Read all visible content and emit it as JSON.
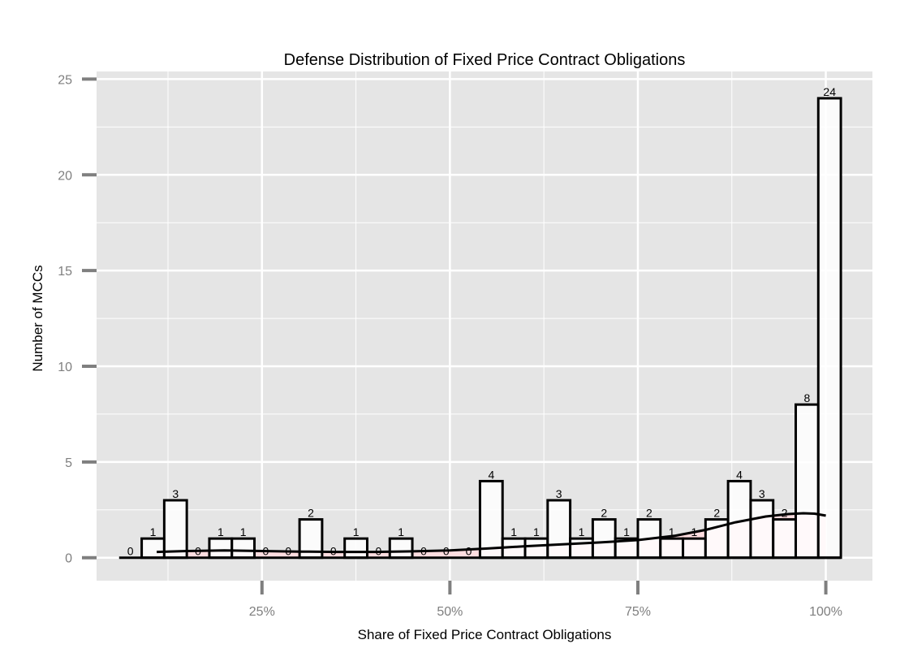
{
  "chart_data": {
    "type": "bar",
    "title": "Defense Distribution of Fixed Price Contract Obligations",
    "xlabel": "Share of Fixed Price Contract Obligations",
    "ylabel": "Number of MCCs",
    "xlim": [
      0.03,
      1.062
    ],
    "ylim": [
      -1.2,
      25.4
    ],
    "x_ticks": [
      0.25,
      0.5,
      0.75,
      1.0
    ],
    "x_tick_labels": [
      "25%",
      "50%",
      "75%",
      "100%"
    ],
    "y_ticks": [
      0,
      5,
      10,
      15,
      20,
      25
    ],
    "y_tick_labels": [
      "0",
      "5",
      "10",
      "15",
      "20",
      "25"
    ],
    "bin_width": 0.03,
    "bin_centers": [
      0.075,
      0.105,
      0.135,
      0.165,
      0.195,
      0.225,
      0.255,
      0.285,
      0.315,
      0.345,
      0.375,
      0.405,
      0.435,
      0.465,
      0.495,
      0.525,
      0.555,
      0.585,
      0.615,
      0.645,
      0.675,
      0.705,
      0.735,
      0.765,
      0.795,
      0.825,
      0.855,
      0.885,
      0.915,
      0.945,
      0.975,
      1.005
    ],
    "values": [
      0,
      1,
      3,
      0,
      1,
      1,
      0,
      0,
      2,
      0,
      1,
      0,
      1,
      0,
      0,
      0,
      4,
      1,
      1,
      3,
      1,
      2,
      1,
      2,
      1,
      1,
      2,
      4,
      3,
      2,
      8,
      24
    ],
    "density": {
      "x": [
        0.11,
        0.15,
        0.2,
        0.25,
        0.3,
        0.35,
        0.4,
        0.45,
        0.5,
        0.55,
        0.6,
        0.65,
        0.7,
        0.75,
        0.8,
        0.84,
        0.88,
        0.92,
        0.95,
        0.97,
        0.985,
        1.0
      ],
      "y": [
        0.3,
        0.35,
        0.38,
        0.35,
        0.32,
        0.3,
        0.3,
        0.33,
        0.38,
        0.48,
        0.6,
        0.7,
        0.8,
        0.92,
        1.15,
        1.45,
        1.85,
        2.15,
        2.28,
        2.32,
        2.3,
        2.2
      ]
    },
    "grid": true,
    "legend": "none",
    "colors": {
      "panel": "#e5e5e5",
      "grid": "#ffffff",
      "bar_fill": "#ffffff",
      "bar_stroke": "#000000",
      "density_fill": "#ffdde0",
      "tick": "#7f7f7f"
    }
  }
}
